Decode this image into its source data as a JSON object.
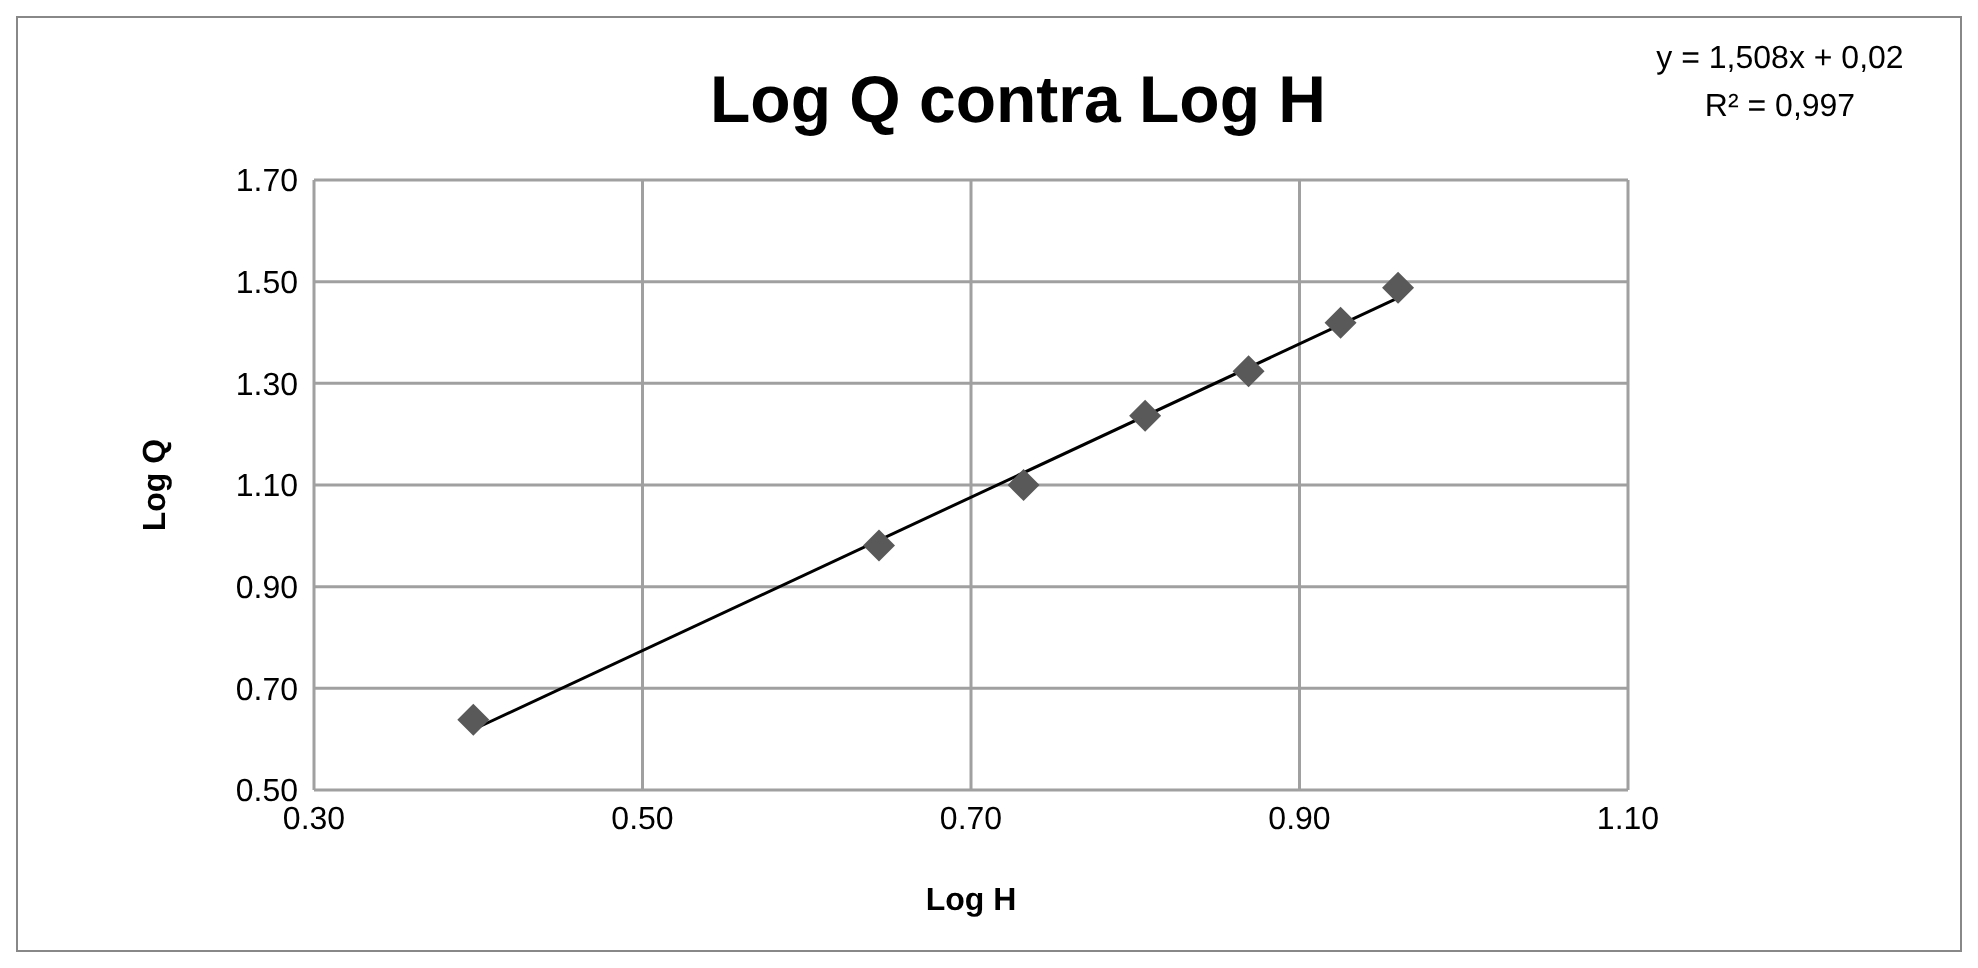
{
  "chart_data": {
    "type": "scatter",
    "title": "Log Q contra Log H",
    "xlabel": "Log H",
    "ylabel": "Log Q",
    "annotations": [
      "y = 1,508x + 0,02",
      "R² = 0,997"
    ],
    "series": [
      {
        "color": "#595959",
        "marker": "diamond",
        "x": [
          0.397,
          0.644,
          0.732,
          0.806,
          0.869,
          0.925,
          0.96
        ],
        "values": [
          0.638,
          0.981,
          1.1,
          1.236,
          1.324,
          1.419,
          1.488
        ]
      },
      {
        "type": "line",
        "color": "#000000",
        "marker": "none",
        "line_style": "solid",
        "x": [
          0.397,
          0.96
        ],
        "values": [
          0.619,
          1.468
        ]
      }
    ],
    "xlim": [
      0.3,
      1.1
    ],
    "xticks": [
      {
        "value": 0.3,
        "label": "0.30"
      },
      {
        "value": 0.5,
        "label": "0.50"
      },
      {
        "value": 0.7,
        "label": "0.70"
      },
      {
        "value": 0.9,
        "label": "0.90"
      },
      {
        "value": 1.1,
        "label": "1.10"
      }
    ],
    "ylim": [
      0.5,
      1.7
    ],
    "yticks": [
      {
        "value": 0.5,
        "label": "0.50"
      },
      {
        "value": 0.7,
        "label": "0.70"
      },
      {
        "value": 0.9,
        "label": "0.90"
      },
      {
        "value": 1.1,
        "label": "1.10"
      },
      {
        "value": 1.3,
        "label": "1.30"
      },
      {
        "value": 1.5,
        "label": "1.50"
      },
      {
        "value": 1.7,
        "label": "1.70"
      }
    ],
    "grid": true,
    "legend": false
  }
}
